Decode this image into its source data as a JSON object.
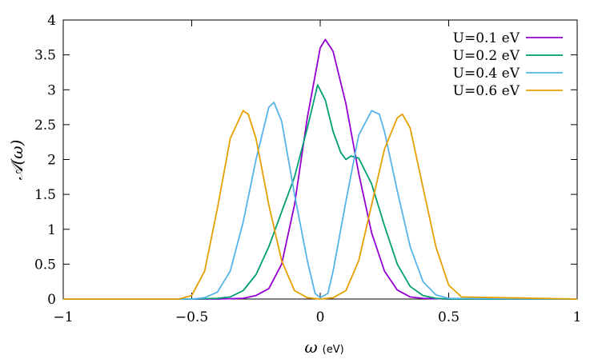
{
  "chart_data": {
    "type": "line",
    "title": "",
    "xlabel": "ω",
    "xlabel_unit": "(eV)",
    "ylabel": "𝒜(ω)",
    "xlim": [
      -1,
      1
    ],
    "ylim": [
      0,
      4
    ],
    "x_ticks": [
      -1,
      -0.5,
      0,
      0.5,
      1
    ],
    "x_tick_labels": [
      "−1",
      "−0.5",
      "0",
      "0.5",
      "1"
    ],
    "y_ticks": [
      0,
      0.5,
      1,
      1.5,
      2,
      2.5,
      3,
      3.5,
      4
    ],
    "y_tick_labels": [
      "0",
      "0.5",
      "1",
      "1.5",
      "2",
      "2.5",
      "3",
      "3.5",
      "4"
    ],
    "grid": false,
    "legend_position": "top-right",
    "series": [
      {
        "name": "U=0.1 eV",
        "color": "#9400d3",
        "x": [
          -1,
          -0.5,
          -0.4,
          -0.3,
          -0.25,
          -0.2,
          -0.15,
          -0.1,
          -0.05,
          0,
          0.02,
          0.05,
          0.1,
          0.15,
          0.2,
          0.25,
          0.3,
          0.35,
          0.4,
          0.5,
          1
        ],
        "y": [
          0,
          0,
          0,
          0.01,
          0.05,
          0.15,
          0.5,
          1.35,
          2.6,
          3.6,
          3.72,
          3.55,
          2.8,
          1.8,
          0.95,
          0.4,
          0.13,
          0.03,
          0.01,
          0,
          0
        ]
      },
      {
        "name": "U=0.2 eV",
        "color": "#009e73",
        "x": [
          -1,
          -0.5,
          -0.4,
          -0.35,
          -0.3,
          -0.25,
          -0.2,
          -0.15,
          -0.1,
          -0.05,
          -0.01,
          0.02,
          0.05,
          0.08,
          0.1,
          0.12,
          0.15,
          0.2,
          0.25,
          0.3,
          0.35,
          0.4,
          0.45,
          0.5,
          1
        ],
        "y": [
          0,
          0,
          0.01,
          0.03,
          0.12,
          0.35,
          0.75,
          1.25,
          1.75,
          2.45,
          3.07,
          2.85,
          2.4,
          2.1,
          2.0,
          2.05,
          2.02,
          1.65,
          1.05,
          0.5,
          0.18,
          0.05,
          0.01,
          0,
          0
        ]
      },
      {
        "name": "U=0.4 eV",
        "color": "#56b4e9",
        "x": [
          -1,
          -0.5,
          -0.45,
          -0.4,
          -0.35,
          -0.3,
          -0.25,
          -0.2,
          -0.18,
          -0.15,
          -0.1,
          -0.05,
          -0.02,
          0,
          0.03,
          0.05,
          0.1,
          0.15,
          0.2,
          0.23,
          0.25,
          0.3,
          0.35,
          0.4,
          0.45,
          0.5,
          1
        ],
        "y": [
          0,
          0,
          0.02,
          0.1,
          0.4,
          1.1,
          2.0,
          2.75,
          2.82,
          2.55,
          1.5,
          0.55,
          0.08,
          0.02,
          0.08,
          0.4,
          1.4,
          2.35,
          2.7,
          2.65,
          2.4,
          1.55,
          0.75,
          0.25,
          0.06,
          0.01,
          0
        ]
      },
      {
        "name": "U=0.6 eV",
        "color": "#e69f00",
        "x": [
          -1,
          -0.55,
          -0.5,
          -0.45,
          -0.4,
          -0.35,
          -0.3,
          -0.28,
          -0.25,
          -0.2,
          -0.15,
          -0.1,
          -0.05,
          0,
          0.05,
          0.1,
          0.15,
          0.2,
          0.25,
          0.3,
          0.32,
          0.35,
          0.4,
          0.45,
          0.5,
          0.55,
          1
        ],
        "y": [
          0,
          0,
          0.05,
          0.4,
          1.3,
          2.3,
          2.7,
          2.65,
          2.3,
          1.35,
          0.55,
          0.12,
          0.02,
          0,
          0.02,
          0.12,
          0.55,
          1.35,
          2.15,
          2.6,
          2.65,
          2.45,
          1.6,
          0.75,
          0.2,
          0.03,
          0
        ]
      }
    ]
  }
}
